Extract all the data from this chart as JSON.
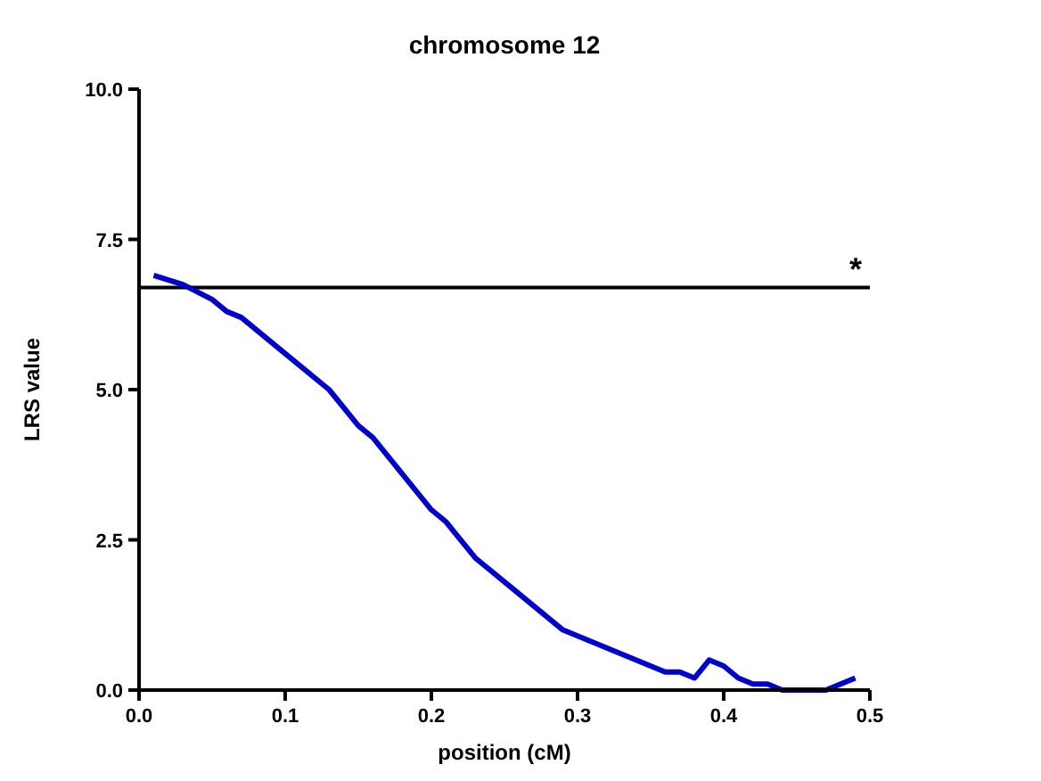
{
  "chart_data": {
    "type": "line",
    "title": "chromosome 12",
    "xlabel": "position (cM)",
    "ylabel": "LRS value",
    "x": [
      0.01,
      0.03,
      0.05,
      0.06,
      0.07,
      0.1,
      0.13,
      0.15,
      0.16,
      0.2,
      0.21,
      0.23,
      0.26,
      0.29,
      0.32,
      0.36,
      0.37,
      0.38,
      0.39,
      0.4,
      0.41,
      0.42,
      0.43,
      0.44,
      0.47,
      0.49
    ],
    "series": [
      {
        "color": "#0000cc",
        "values": [
          6.9,
          6.75,
          6.5,
          6.3,
          6.2,
          5.6,
          5.0,
          4.4,
          4.2,
          3.0,
          2.8,
          2.2,
          1.6,
          1.0,
          0.7,
          0.3,
          0.3,
          0.2,
          0.5,
          0.4,
          0.2,
          0.1,
          0.1,
          0.0,
          0.0,
          0.2
        ]
      }
    ],
    "xlim": [
      0,
      0.5
    ],
    "xticks": [
      {
        "value": 0,
        "label": "0.0"
      },
      0.1,
      0.2,
      0.3,
      0.4,
      0.5
    ],
    "ylim": [
      0,
      10
    ],
    "yticks": [
      {
        "value": 0,
        "label": "0.0"
      },
      {
        "value": 2.5,
        "label": "2.5"
      },
      {
        "value": 5,
        "label": "5.0"
      },
      {
        "value": 7.5,
        "label": "7.5"
      },
      {
        "value": 10,
        "label": "10.0"
      }
    ],
    "ref_lines": [
      {
        "axis": "y",
        "value": 6.7,
        "label": "*",
        "color": "#000000"
      }
    ],
    "grid": false,
    "marker": "none",
    "line_style": "solid"
  }
}
